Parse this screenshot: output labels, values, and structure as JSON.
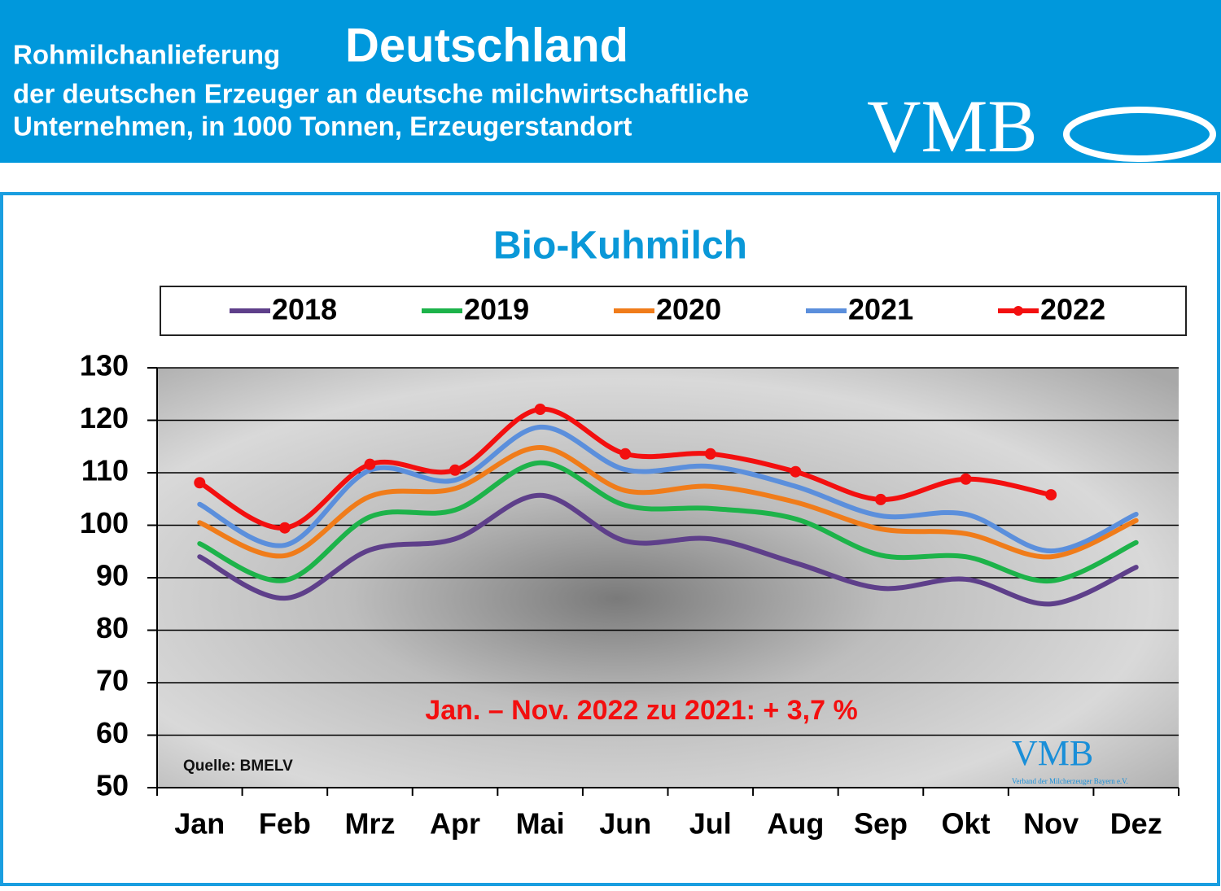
{
  "header": {
    "title_small": "Rohmilchanlieferung",
    "title_big": "Deutschland",
    "subtitle_1": "der deutschen Erzeuger an deutsche milchwirtschaftliche",
    "subtitle_2": "Unternehmen, in 1000 Tonnen, Erzeugerstandort",
    "logo": "VMB"
  },
  "chart_data": {
    "type": "line",
    "title": "Bio-Kuhmilch",
    "categories": [
      "Jan",
      "Feb",
      "Mrz",
      "Apr",
      "Mai",
      "Jun",
      "Jul",
      "Aug",
      "Sep",
      "Okt",
      "Nov",
      "Dez"
    ],
    "series": [
      {
        "name": "2018",
        "color": "#5e3f8a",
        "values": [
          94,
          86.1,
          95.3,
          97.4,
          105.7,
          97,
          97.4,
          92.8,
          88,
          89.7,
          85,
          92
        ]
      },
      {
        "name": "2019",
        "color": "#1db34a",
        "values": [
          96.5,
          89.5,
          101.6,
          102.9,
          111.9,
          103.8,
          103.2,
          101.2,
          94.3,
          94,
          89.4,
          96.7
        ]
      },
      {
        "name": "2020",
        "color": "#f07c1a",
        "values": [
          100.5,
          94.2,
          105.5,
          107,
          114.8,
          106.6,
          107.4,
          104.4,
          99.3,
          98.4,
          94,
          100.9
        ]
      },
      {
        "name": "2021",
        "color": "#5b8fdc",
        "values": [
          104,
          96.2,
          110.5,
          108.6,
          118.7,
          110.6,
          111.2,
          107.4,
          101.8,
          102.1,
          95.1,
          102.1
        ]
      },
      {
        "name": "2022",
        "color": "#f30f0f",
        "markers": true,
        "values": [
          108.1,
          99.5,
          111.6,
          110.5,
          122.1,
          113.6,
          113.6,
          110.2,
          104.9,
          108.8,
          105.8,
          null
        ]
      }
    ],
    "ylim": [
      50,
      130
    ],
    "yticks": [
      50,
      60,
      70,
      80,
      90,
      100,
      110,
      120,
      130
    ],
    "grid": true,
    "annotation": "Jan. – Nov. 2022 zu 2021: + 3,7 %",
    "source": "Quelle: BMELV",
    "watermark": "VMB",
    "watermark_sub": "Verband der Milcherzeuger Bayern e.V."
  }
}
